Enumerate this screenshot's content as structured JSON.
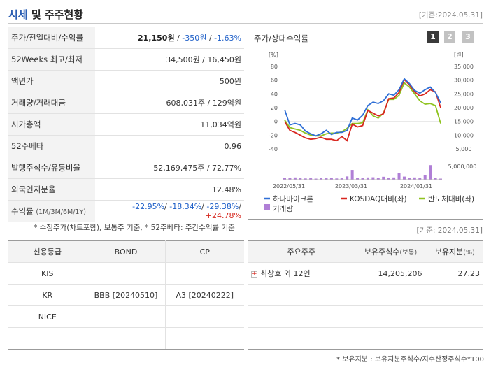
{
  "header": {
    "title_accent": "시세",
    "title_rest": " 및 주주현황",
    "date": "[기준:2024.05.31]"
  },
  "info": {
    "price_label": "주가/전일대비/수익률",
    "price_value": "21,150원",
    "price_change": "-350원",
    "price_rate": "-1.63%",
    "rows": [
      {
        "label": "52Weeks 최고/최저",
        "value": "34,500원 / 16,450원"
      },
      {
        "label": "액면가",
        "value": "500원"
      },
      {
        "label": "거래량/거래대금",
        "value": "608,031주 / 129억원"
      },
      {
        "label": "시가총액",
        "value": "11,034억원"
      },
      {
        "label": "52주베타",
        "value": "0.96"
      },
      {
        "label": "발행주식수/유동비율",
        "value": "52,169,475주 / 72.77%"
      },
      {
        "label": "외국인지분율",
        "value": "12.48%"
      }
    ],
    "return_label": "수익률",
    "return_sublabel": "(1M/3M/6M/1Y)",
    "returns": [
      "-22.95%",
      "-18.34%",
      "-29.38%",
      "+24.78%"
    ]
  },
  "note1": "* 수정주가(차트포함), 보통주 기준, * 52주베타: 주간수익률 기준",
  "chart": {
    "title": "주가/상대수익률",
    "pages": [
      "1",
      "2",
      "3"
    ],
    "left_unit": "[%]",
    "right_unit": "[원]",
    "legend": [
      "하나마이크론",
      "KOSDAQ대비(좌)",
      "반도체대비(좌)",
      "거래량"
    ],
    "colors": {
      "stock": "#2f6fd6",
      "kosdaq": "#d8261f",
      "semi": "#8fc31f",
      "volume": "#b07fd6"
    }
  },
  "chart_data": {
    "type": "line",
    "x_tick_labels": [
      "2022/05/31",
      "2023/03/31",
      "2024/01/31"
    ],
    "ylim_left": [
      -40,
      80
    ],
    "yticks_left": [
      80,
      60,
      40,
      20,
      0,
      -20,
      -40
    ],
    "ylim_right": [
      5000,
      35000
    ],
    "yticks_right": [
      "35,000",
      "30,000",
      "25,000",
      "20,000",
      "15,000",
      "10,000",
      "5,000"
    ],
    "volume_tick": "5,000,000",
    "series": [
      {
        "name": "하나마이크론",
        "values": [
          17,
          -5,
          -3,
          -5,
          -14,
          -18,
          -21,
          -18,
          -13,
          -19,
          -16,
          -16,
          -13,
          5,
          2,
          9,
          23,
          28,
          26,
          30,
          40,
          38,
          46,
          62,
          55,
          45,
          41,
          46,
          50,
          42,
          27
        ]
      },
      {
        "name": "KOSDAQ대비(좌)",
        "values": [
          0,
          -13,
          -16,
          -20,
          -24,
          -26,
          -25,
          -23,
          -26,
          -26,
          -28,
          -22,
          -28,
          -4,
          -8,
          -6,
          16,
          12,
          8,
          11,
          33,
          34,
          42,
          61,
          53,
          43,
          37,
          40,
          46,
          43,
          20
        ]
      },
      {
        "name": "반도체대비(좌)",
        "values": [
          2,
          -9,
          -11,
          -13,
          -17,
          -20,
          -21,
          -21,
          -18,
          -17,
          -17,
          -15,
          -10,
          -3,
          -3,
          -2,
          17,
          8,
          5,
          12,
          32,
          32,
          38,
          56,
          50,
          40,
          30,
          25,
          26,
          23,
          -3
        ]
      },
      {
        "name": "거래량",
        "values": [
          0.9,
          1.1,
          1.3,
          0.9,
          0.7,
          0.8,
          0.6,
          0.9,
          0.8,
          0.9,
          0.7,
          0.8,
          1.9,
          5.7,
          0.9,
          1.0,
          1.3,
          1.4,
          0.9,
          1.7,
          1.2,
          1.3,
          3.9,
          1.8,
          1.2,
          1.3,
          1.0,
          2.5,
          8.5,
          1.0,
          0.6
        ]
      }
    ]
  },
  "date2": "[기준: 2024.05.31]",
  "credit": {
    "headers": [
      "신용등급",
      "BOND",
      "CP"
    ],
    "rows": [
      [
        "KIS",
        "",
        ""
      ],
      [
        "KR",
        "BBB  [20240510]",
        "A3  [20240222]"
      ],
      [
        "NICE",
        "",
        ""
      ],
      [
        "",
        "",
        ""
      ]
    ]
  },
  "holders": {
    "headers": [
      "주요주주",
      "보유주식수",
      "(보통)",
      "보유지분",
      "(%)"
    ],
    "rows": [
      {
        "name": "최창호 외 12인",
        "shares": "14,205,206",
        "pct": "27.23"
      }
    ]
  },
  "note2": "* 보유지분 : 보유지분주식수/지수산정주식수*100"
}
